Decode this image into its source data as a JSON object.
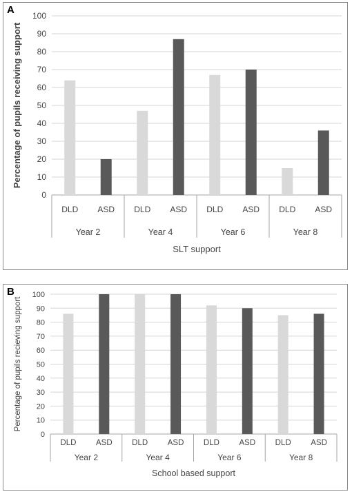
{
  "chart_data": [
    {
      "panel": "A",
      "type": "bar",
      "ylabel": "Percentage of pupils receiving support",
      "xlabel": "SLT support",
      "ylim": [
        0,
        100
      ],
      "yticks": [
        0,
        10,
        20,
        30,
        40,
        50,
        60,
        70,
        80,
        90,
        100
      ],
      "groups": [
        "Year 2",
        "Year 4",
        "Year 6",
        "Year 8"
      ],
      "categories": [
        "DLD",
        "ASD"
      ],
      "colors": {
        "DLD": "#d9d9d9",
        "ASD": "#595959"
      },
      "grid": true,
      "values": {
        "DLD": [
          64,
          47,
          67,
          15
        ],
        "ASD": [
          20,
          87,
          70,
          36
        ]
      }
    },
    {
      "panel": "B",
      "type": "bar",
      "ylabel": "Percentage of pupils recieving support",
      "xlabel": "School based support",
      "ylim": [
        0,
        100
      ],
      "yticks": [
        0,
        10,
        20,
        30,
        40,
        50,
        60,
        70,
        80,
        90,
        100
      ],
      "groups": [
        "Year 2",
        "Year 4",
        "Year 6",
        "Year 8"
      ],
      "categories": [
        "DLD",
        "ASD"
      ],
      "colors": {
        "DLD": "#d9d9d9",
        "ASD": "#595959"
      },
      "grid": true,
      "values": {
        "DLD": [
          86,
          100,
          92,
          85
        ],
        "ASD": [
          100,
          100,
          90,
          86
        ]
      }
    }
  ]
}
